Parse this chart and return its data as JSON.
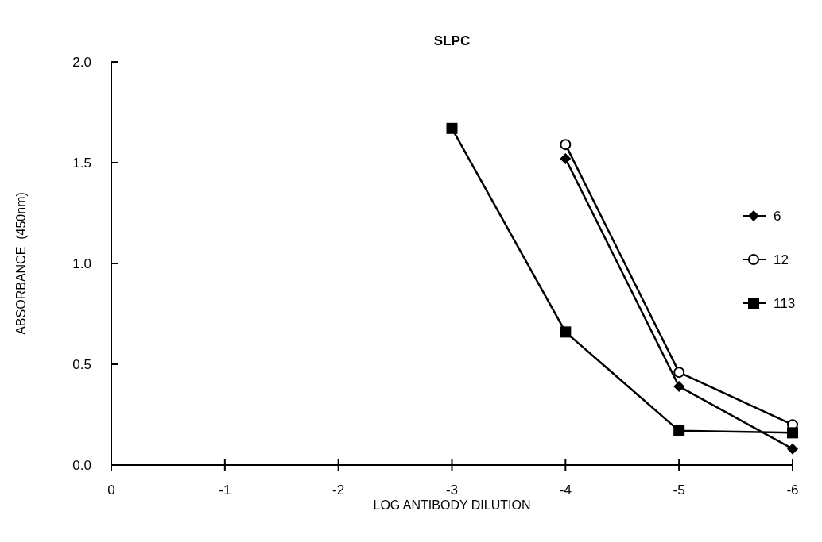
{
  "chart_data": {
    "type": "line",
    "title": "SLPC",
    "xlabel": "LOG ANTIBODY DILUTION",
    "ylabel": "ABSORBANCE  (450nm)",
    "xlim": [
      0,
      -6
    ],
    "xticks": [
      0,
      -1,
      -2,
      -3,
      -4,
      -5,
      -6
    ],
    "ylim": [
      0,
      2
    ],
    "yticks": [
      {
        "value": 0,
        "label": "0.0"
      },
      {
        "value": 0.5,
        "label": "0.5"
      },
      {
        "value": 1,
        "label": "1.0"
      },
      {
        "value": 1.5,
        "label": "1.5"
      },
      {
        "value": 2,
        "label": "2.0"
      }
    ],
    "grid": false,
    "legend": "right",
    "line_style": "solid",
    "series": [
      {
        "name": "6",
        "color": "#000000",
        "marker": "diamond",
        "x": [
          -4,
          -5,
          -6
        ],
        "values": [
          1.52,
          0.39,
          0.08
        ]
      },
      {
        "name": "12",
        "color": "#000000",
        "marker": "circle",
        "x": [
          -4,
          -5,
          -6
        ],
        "values": [
          1.59,
          0.46,
          0.2
        ]
      },
      {
        "name": "113",
        "color": "#000000",
        "marker": "square",
        "x": [
          -3,
          -4,
          -5,
          -6
        ],
        "values": [
          1.67,
          0.66,
          0.17,
          0.16
        ]
      }
    ]
  }
}
